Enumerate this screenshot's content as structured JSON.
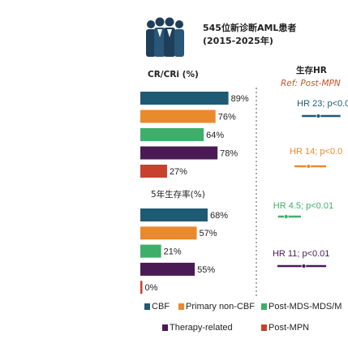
{
  "header": {
    "title": "545位新诊断AML患者",
    "subtitle": "(2015-2025年)"
  },
  "chart_data": [
    {
      "type": "bar",
      "orientation": "horizontal",
      "title": "CR/CRi (%)",
      "categories": [
        "CBF",
        "Primary non-CBF",
        "Post-MDS-MDS/M",
        "Therapy-related",
        "Post-MPN"
      ],
      "colors": [
        "#1e5a73",
        "#e98a2c",
        "#3fae6a",
        "#4a1a55",
        "#c8402f"
      ],
      "values": [
        89,
        76,
        64,
        78,
        27
      ],
      "value_labels": [
        "89%",
        "76%",
        "64%",
        "78%",
        "27%"
      ],
      "xlim": [
        0,
        100
      ]
    },
    {
      "type": "bar",
      "orientation": "horizontal",
      "title": "5年生存率(%)",
      "values": [
        68,
        57,
        21,
        55,
        0
      ],
      "value_labels": [
        "68%",
        "57%",
        "21%",
        "55%",
        "0%"
      ],
      "xlim": [
        0,
        100
      ]
    },
    {
      "type": "forest",
      "title": "生存HR",
      "subtitle": "Ref: Post-MPN",
      "values": [
        23,
        14,
        4.5,
        11
      ],
      "value_labels": [
        "HR 23; p<0.0",
        "HR 14; p<0.0",
        "HR 4.5; p<0.01",
        "HR 11; p<0.01"
      ],
      "ci": [
        [
          10,
          70
        ],
        [
          6.9,
          34
        ],
        [
          3,
          9.5
        ],
        [
          2.9,
          34
        ]
      ],
      "xlim": [
        1,
        40
      ],
      "log_scale": true
    }
  ]
}
